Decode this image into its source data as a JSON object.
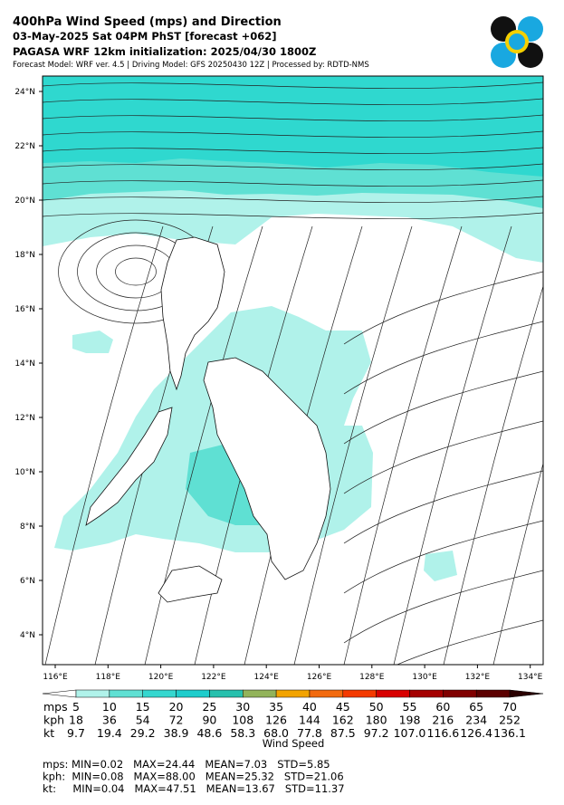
{
  "header": {
    "title": "400hPa Wind Speed (mps) and Direction",
    "subtitle": "03-May-2025 Sat 04PM PhST [forecast +062]",
    "init": "PAGASA WRF 12km initialization: 2025/04/30 1800Z",
    "credits": "Forecast Model: WRF ver. 4.5 | Driving Model: GFS 20250430 12Z | Processed by: RDTD-NMS"
  },
  "map": {
    "lat_labels": [
      "24°N",
      "22°N",
      "20°N",
      "18°N",
      "16°N",
      "14°N",
      "12°N",
      "10°N",
      "8°N",
      "6°N",
      "4°N"
    ],
    "lon_labels": [
      "116°E",
      "118°E",
      "120°E",
      "122°E",
      "124°E",
      "126°E",
      "128°E",
      "130°E",
      "132°E",
      "134°E"
    ]
  },
  "colorbar": {
    "colors": [
      "#ffffff",
      "#b0f2ea",
      "#5fe0d3",
      "#35d7cf",
      "#1ecdcc",
      "#26c0ad",
      "#92b35a",
      "#f2a300",
      "#f26a0e",
      "#f43a00",
      "#d80000",
      "#a40000",
      "#800000",
      "#5c0000",
      "#2a0000"
    ],
    "rows": [
      {
        "unit": "mps",
        "labels": [
          "5",
          "10",
          "15",
          "20",
          "25",
          "30",
          "35",
          "40",
          "45",
          "50",
          "55",
          "60",
          "65",
          "70"
        ]
      },
      {
        "unit": "kph",
        "labels": [
          "18",
          "36",
          "54",
          "72",
          "90",
          "108",
          "126",
          "144",
          "162",
          "180",
          "198",
          "216",
          "234",
          "252"
        ]
      },
      {
        "unit": "kt",
        "labels": [
          "9.7",
          "19.4",
          "29.2",
          "38.9",
          "48.6",
          "58.3",
          "68.0",
          "77.8",
          "87.5",
          "97.2",
          "107.0",
          "116.6",
          "126.4",
          "136.1"
        ]
      }
    ],
    "label": "Wind Speed"
  },
  "stats": [
    "mps: MIN=0.02   MAX=24.44   MEAN=7.03   STD=5.85",
    "kph:  MIN=0.08   MAX=88.00   MEAN=25.32   STD=21.06",
    "kt:     MIN=0.04   MAX=47.51   MEAN=13.67   STD=11.37"
  ]
}
